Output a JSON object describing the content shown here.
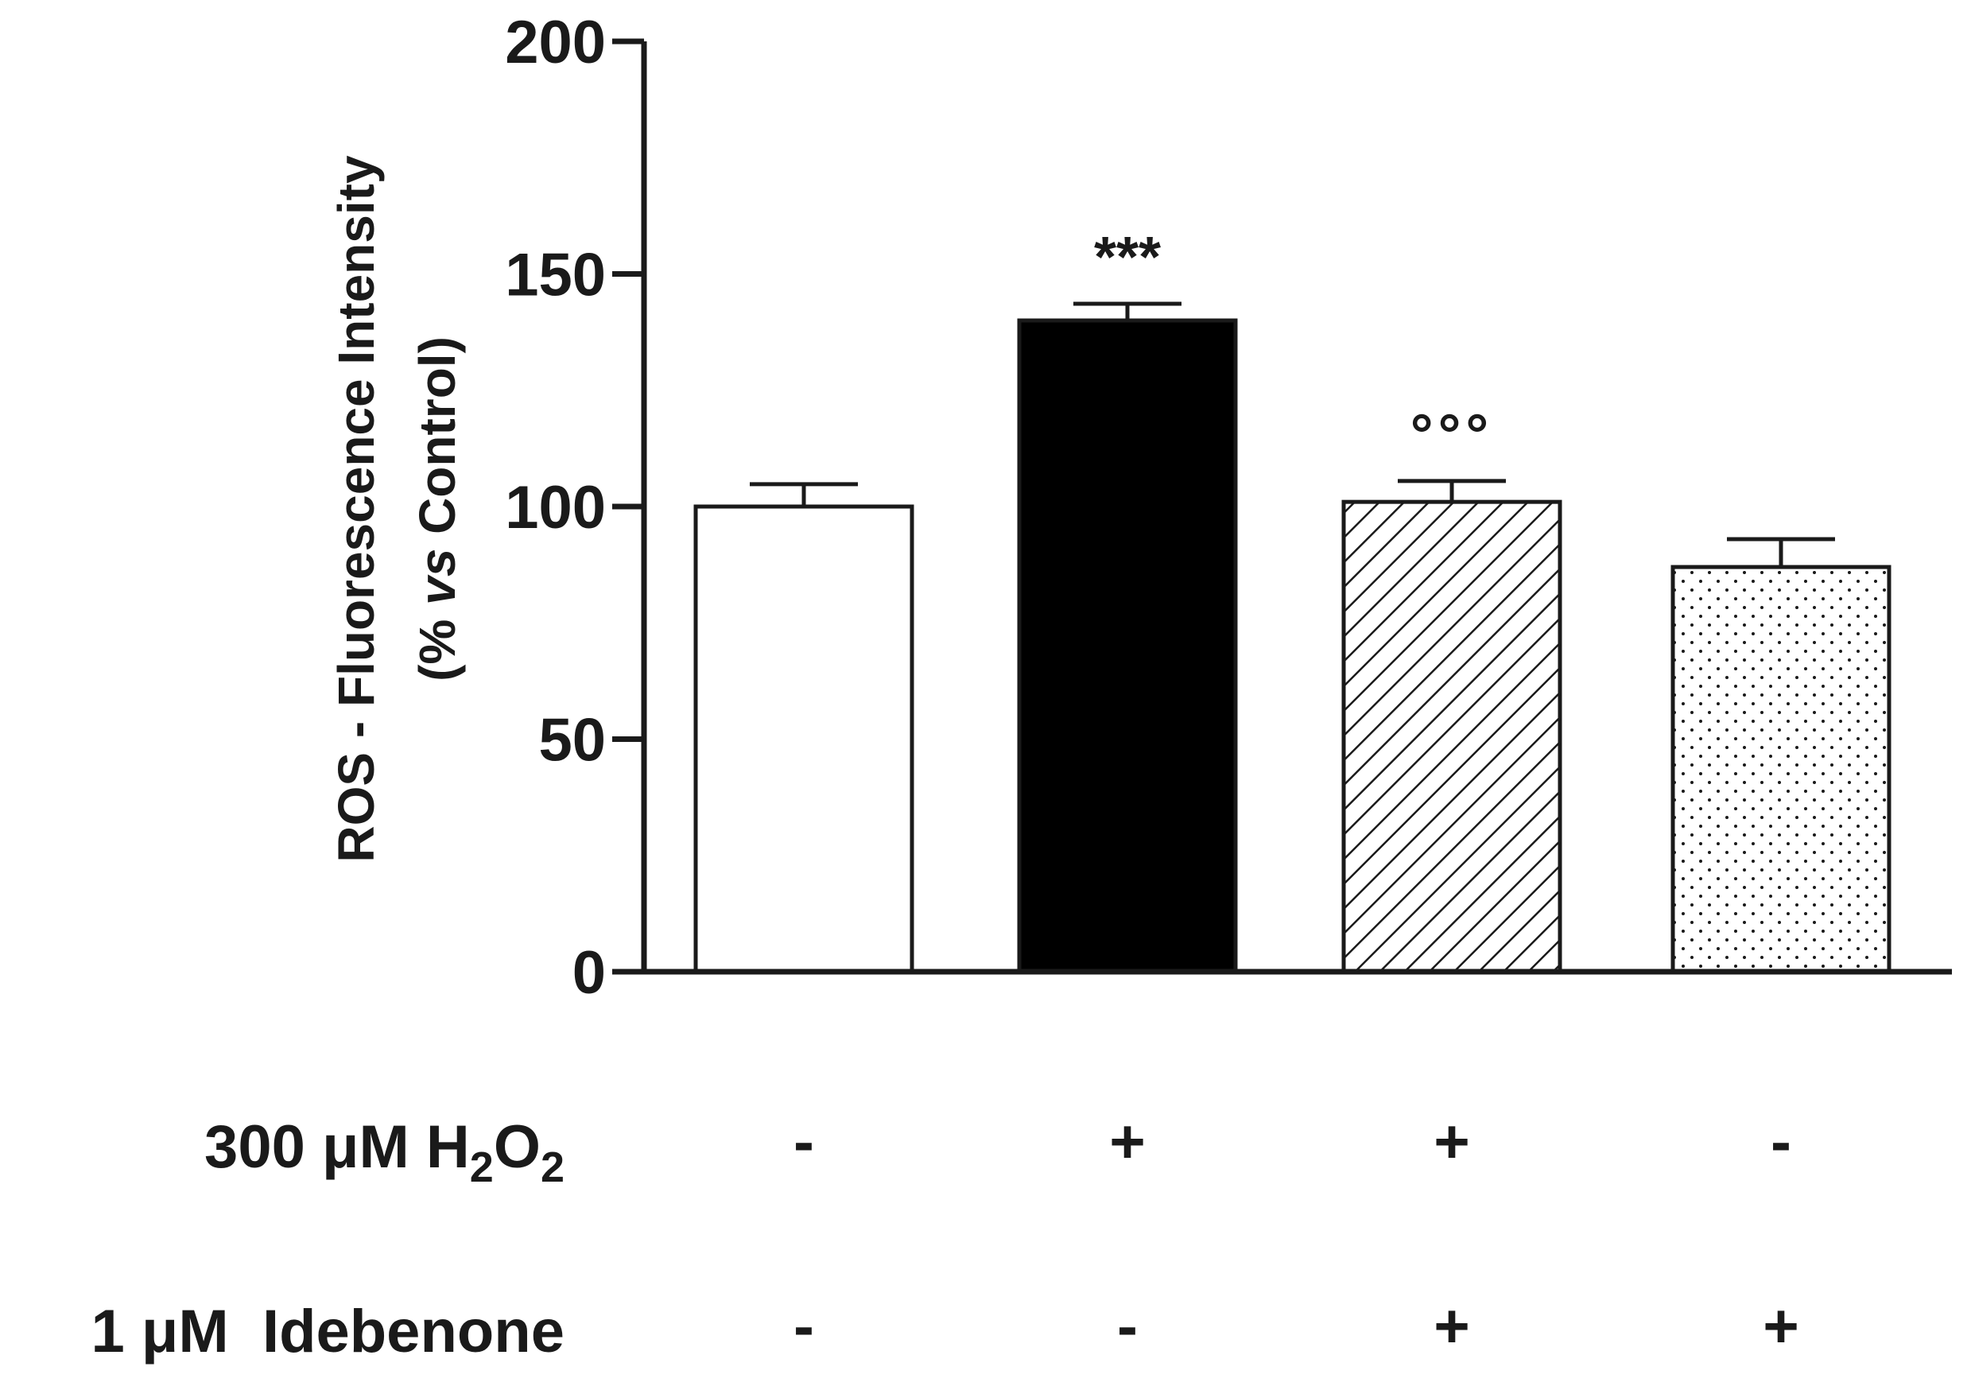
{
  "chart_data": {
    "type": "bar",
    "ylabel_line1": "ROS - Fluorescence Intensity",
    "ylabel_line2_prefix": "(% ",
    "ylabel_line2_italic": "vs",
    "ylabel_line2_suffix": " Control)",
    "ylim": [
      0,
      200
    ],
    "yticks": [
      "0",
      "50",
      "100",
      "150",
      "200"
    ],
    "bars": [
      {
        "value": 100,
        "error": 4.8,
        "fill": "white",
        "annotation": ""
      },
      {
        "value": 140,
        "error": 3.6,
        "fill": "black",
        "annotation": "***"
      },
      {
        "value": 101,
        "error": 4.5,
        "fill": "hatch",
        "annotation": "°°°"
      },
      {
        "value": 87,
        "error": 6.0,
        "fill": "dots",
        "annotation": ""
      }
    ],
    "conditions": [
      {
        "label_pre": "300 μM H",
        "sub1": "2",
        "mid": "O",
        "sub2": "2",
        "signs": [
          "-",
          "+",
          "+",
          "-"
        ]
      },
      {
        "label": "1 μM  Idebenone",
        "signs": [
          "-",
          "-",
          "+",
          "+"
        ]
      }
    ]
  }
}
